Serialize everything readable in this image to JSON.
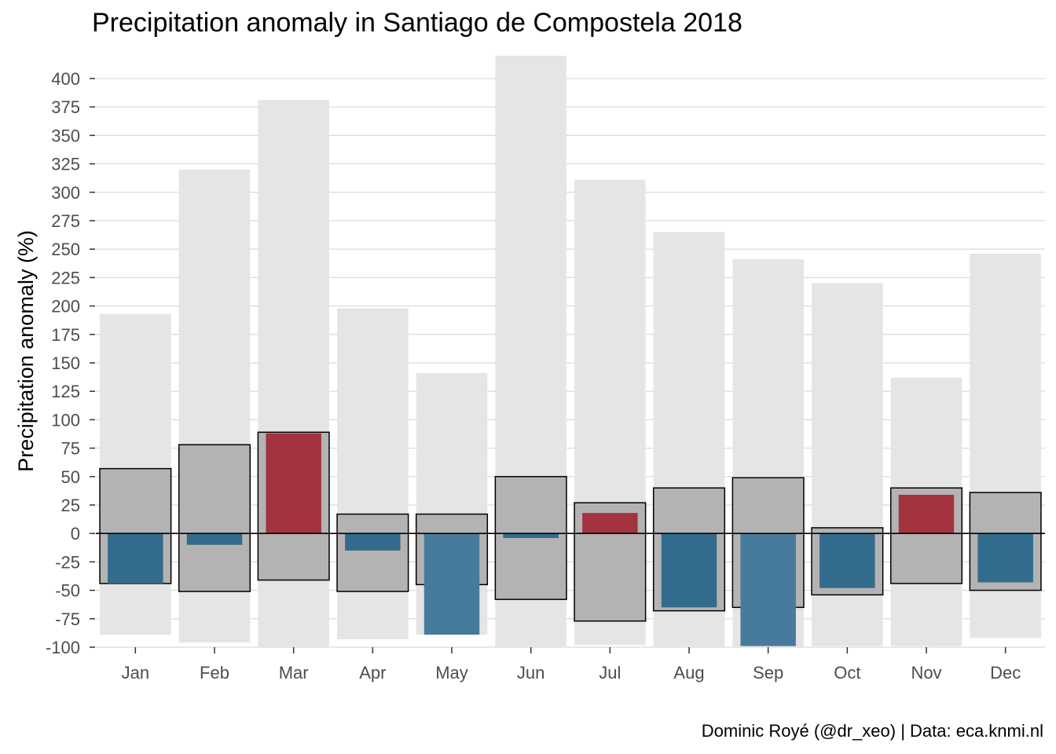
{
  "chart_data": {
    "type": "bar",
    "title": "Precipitation anomaly in Santiago de Compostela 2018",
    "ylabel": "Precipitation anomaly (%)",
    "xlabel": "",
    "caption": "Dominic Royé (@dr_xeo) | Data: eca.knmi.nl",
    "ylim": [
      -100,
      420
    ],
    "yticks": [
      -100,
      -75,
      -50,
      -25,
      0,
      25,
      50,
      75,
      100,
      125,
      150,
      175,
      200,
      225,
      250,
      275,
      300,
      325,
      350,
      375,
      400
    ],
    "grid": true,
    "categories": [
      "Jan",
      "Feb",
      "Mar",
      "Apr",
      "May",
      "Jun",
      "Jul",
      "Aug",
      "Sep",
      "Oct",
      "Nov",
      "Dec"
    ],
    "range": {
      "min": [
        -89,
        -96,
        -100,
        -93,
        -89,
        -100,
        -98,
        -100,
        -100,
        -99,
        -99,
        -92
      ],
      "max": [
        193,
        320,
        381,
        198,
        141,
        420,
        311,
        265,
        241,
        220,
        137,
        246
      ]
    },
    "quantile_band": {
      "low": [
        -44,
        -51,
        -41,
        -51,
        -45,
        -58,
        -77,
        -68,
        -65,
        -54,
        -44,
        -50
      ],
      "high": [
        57,
        78,
        89,
        17,
        17,
        50,
        27,
        40,
        49,
        5,
        40,
        36
      ]
    },
    "anomaly": [
      -44,
      -10,
      88,
      -15,
      -89,
      -4,
      18,
      -65,
      -99,
      -48,
      34,
      -43
    ],
    "colors": {
      "range": "#e5e5e5",
      "band": "#b3b3b3",
      "positive": "#a3333e",
      "negative": "#336b8c",
      "negative_extreme": "#477b9c",
      "grid": "#d9d9d9",
      "zero_line": "#000000"
    }
  }
}
